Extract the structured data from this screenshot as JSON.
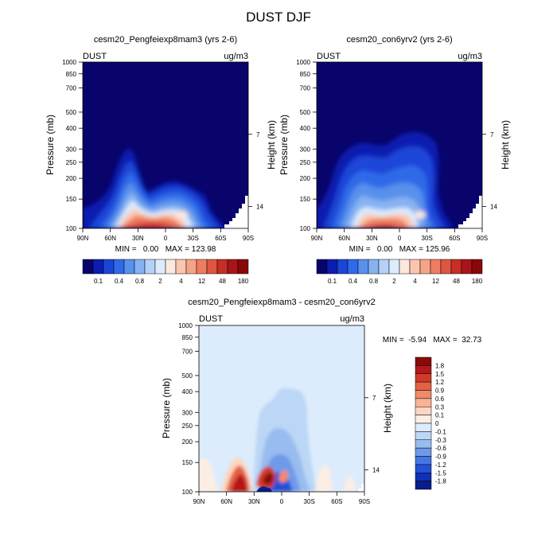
{
  "title": "DUST DJF",
  "chart_data": [
    {
      "type": "heatmap",
      "title": "cesm20_Pengfeiexp8mam3 (yrs 2-6)",
      "left_label": "DUST",
      "right_label": "ug/m3",
      "ylabel": "Pressure (mb)",
      "ylabel_right": "Height (km)",
      "x_ticks": [
        "90N",
        "60N",
        "30N",
        "0",
        "30S",
        "60S",
        "90S"
      ],
      "xlim": [
        90,
        -90
      ],
      "y_ticks": [
        100,
        150,
        200,
        250,
        300,
        400,
        500,
        700,
        850,
        1000
      ],
      "ylim": [
        1000,
        100
      ],
      "y_scale": "log",
      "height_ticks": [
        14,
        7
      ],
      "stats": "MIN =   0.00   MAX = 123.98",
      "levels": [
        "0.1",
        "0.4",
        "0.8",
        "2",
        "4",
        "12",
        "48",
        "180"
      ],
      "colorbar_colors": [
        "#08046c",
        "#0c1eb0",
        "#1a46d8",
        "#2f6ae8",
        "#5890ec",
        "#86b2f2",
        "#b4d2f8",
        "#dcecfc",
        "#fde8de",
        "#fbc6ae",
        "#f6a486",
        "#ed7e60",
        "#de5640",
        "#c62e26",
        "#a8141a",
        "#880808"
      ],
      "colorbar_placement": "bottom"
    },
    {
      "type": "heatmap",
      "title": "cesm20_con6yrv2 (yrs 2-6)",
      "left_label": "DUST",
      "right_label": "ug/m3",
      "ylabel": "Pressure (mb)",
      "ylabel_right": "Height (km)",
      "x_ticks": [
        "90N",
        "60N",
        "30N",
        "0",
        "30S",
        "60S",
        "90S"
      ],
      "xlim": [
        90,
        -90
      ],
      "y_ticks": [
        100,
        150,
        200,
        250,
        300,
        400,
        500,
        700,
        850,
        1000
      ],
      "ylim": [
        1000,
        100
      ],
      "y_scale": "log",
      "height_ticks": [
        14,
        7
      ],
      "stats": "MIN =   0.00   MAX = 125.96",
      "levels": [
        "0.1",
        "0.4",
        "0.8",
        "2",
        "4",
        "12",
        "48",
        "180"
      ],
      "colorbar_colors": [
        "#08046c",
        "#0c1eb0",
        "#1a46d8",
        "#2f6ae8",
        "#5890ec",
        "#86b2f2",
        "#b4d2f8",
        "#dcecfc",
        "#fde8de",
        "#fbc6ae",
        "#f6a486",
        "#ed7e60",
        "#de5640",
        "#c62e26",
        "#a8141a",
        "#880808"
      ],
      "colorbar_placement": "bottom"
    },
    {
      "type": "heatmap",
      "title": "cesm20_Pengfeiexp8mam3 - cesm20_con6yrv2",
      "left_label": "DUST",
      "right_label": "ug/m3",
      "ylabel": "Pressure (mb)",
      "ylabel_right": "Height (km)",
      "x_ticks": [
        "90N",
        "60N",
        "30N",
        "0",
        "30S",
        "60S",
        "90S"
      ],
      "xlim": [
        90,
        -90
      ],
      "y_ticks": [
        100,
        150,
        200,
        250,
        300,
        400,
        500,
        700,
        850,
        1000
      ],
      "ylim": [
        1000,
        100
      ],
      "y_scale": "log",
      "height_ticks": [
        14,
        7
      ],
      "stats": "MIN =  -5.94   MAX =  32.73",
      "levels": [
        "1.8",
        "1.5",
        "1.2",
        "0.9",
        "0.6",
        "0.3",
        "0.1",
        "0",
        "-0.1",
        "-0.3",
        "-0.6",
        "-0.9",
        "-1.2",
        "-1.5",
        "-1.8"
      ],
      "colorbar_colors": [
        "#8a0a0a",
        "#b41818",
        "#d03a2a",
        "#e46044",
        "#f08a6a",
        "#f8b294",
        "#fcd6c0",
        "#fdeee4",
        "#dcecfc",
        "#bcd6f6",
        "#98bcf0",
        "#6e9aea",
        "#4676e4",
        "#2350d6",
        "#1030b4",
        "#0a1c8c"
      ],
      "colorbar_placement": "right"
    }
  ]
}
